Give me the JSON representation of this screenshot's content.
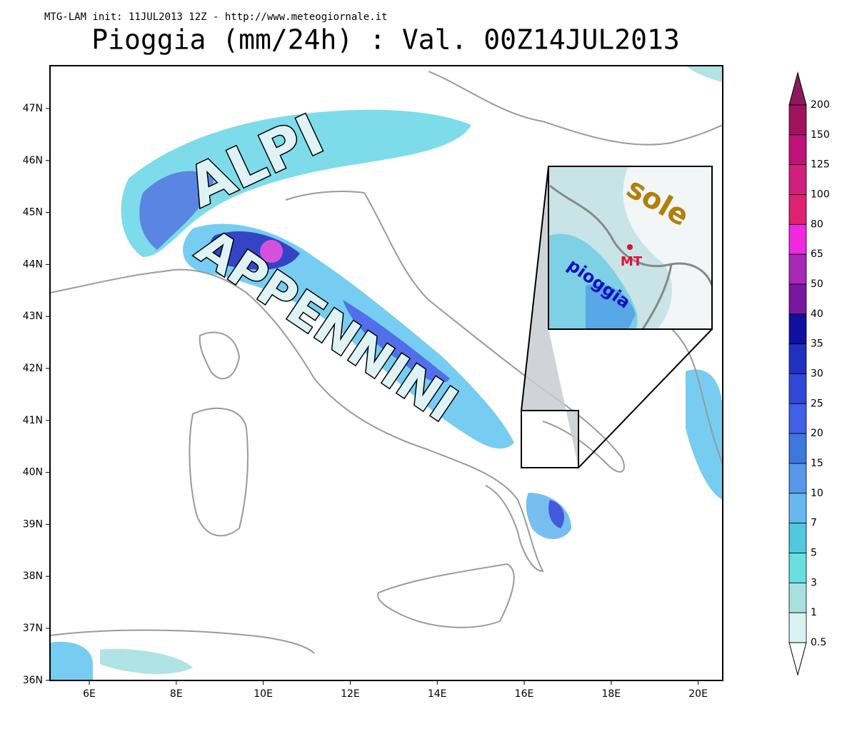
{
  "header": {
    "source": "MTG-LAM init: 11JUL2013 12Z - http://www.meteogiornale.it",
    "title": "Pioggia (mm/24h) : Val. 00Z14JUL2013"
  },
  "map": {
    "lat_labels": [
      "47N",
      "46N",
      "45N",
      "44N",
      "43N",
      "42N",
      "41N",
      "40N",
      "39N",
      "38N",
      "37N",
      "36N"
    ],
    "lon_labels": [
      "6E",
      "8E",
      "10E",
      "12E",
      "14E",
      "16E",
      "18E",
      "20E"
    ],
    "annotations": {
      "alps": "ALPI",
      "apennines": "APPENNINI",
      "sun": "sole",
      "city": "MT",
      "rain": "pioggia"
    }
  },
  "colorbar": {
    "levels": [
      200,
      150,
      125,
      100,
      80,
      65,
      50,
      40,
      35,
      30,
      25,
      20,
      15,
      10,
      7,
      5,
      3,
      1,
      0.5
    ],
    "colors": [
      "#8a1a5a",
      "#a0125e",
      "#c0107a",
      "#d0207f",
      "#e02070",
      "#f028e0",
      "#a828b8",
      "#7818a0",
      "#1010a0",
      "#2030c0",
      "#3048d8",
      "#4060e8",
      "#3c78e0",
      "#5898e8",
      "#68b8f0",
      "#50c8e0",
      "#68e0e0",
      "#a8e0e0",
      "#d8f2f2",
      "#ffffff"
    ]
  }
}
